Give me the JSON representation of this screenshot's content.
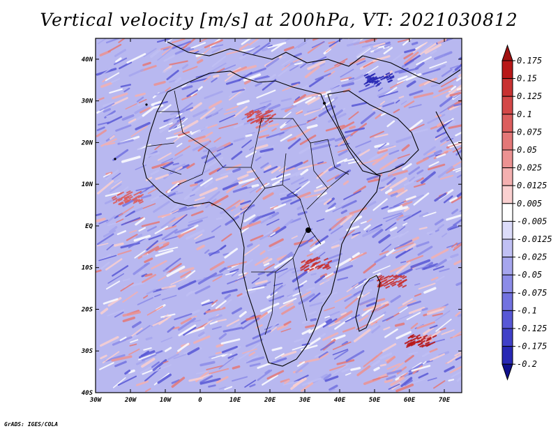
{
  "title": "Vertical velocity [m/s] at 200hPa, VT: 2021030812",
  "credit": "GrADS: IGES/COLA",
  "axes": {
    "lon_labels": [
      "30W",
      "20W",
      "10W",
      "0",
      "10E",
      "20E",
      "30E",
      "40E",
      "50E",
      "60E",
      "70E"
    ],
    "lat_labels": [
      "40N",
      "30N",
      "20N",
      "10N",
      "EQ",
      "10S",
      "20S",
      "30S",
      "40S"
    ],
    "lon_range": [
      -30,
      75
    ],
    "lat_range": [
      -40,
      45
    ]
  },
  "colorbar": {
    "levels": [
      "0.175",
      "0.15",
      "0.125",
      "0.1",
      "0.075",
      "0.05",
      "0.025",
      "0.0125",
      "0.005",
      "-0.005",
      "-0.0125",
      "-0.025",
      "-0.05",
      "-0.075",
      "-0.1",
      "-0.125",
      "-0.175",
      "-0.2"
    ],
    "colors": [
      "#b81818",
      "#c83232",
      "#d44848",
      "#dc5e5e",
      "#e47878",
      "#ec9292",
      "#f4b0b0",
      "#fad0d0",
      "#ffffff",
      "#dcdcfa",
      "#c0c0f4",
      "#a6a6ee",
      "#8c8ce8",
      "#7272e0",
      "#5858d6",
      "#4040c8",
      "#2828b4",
      "#1616a0"
    ],
    "top_color": "#a01010",
    "bottom_color": "#10108c"
  },
  "palette": {
    "red": "#e06868",
    "blue": "#7a7ae6",
    "white": "#ffffff"
  }
}
